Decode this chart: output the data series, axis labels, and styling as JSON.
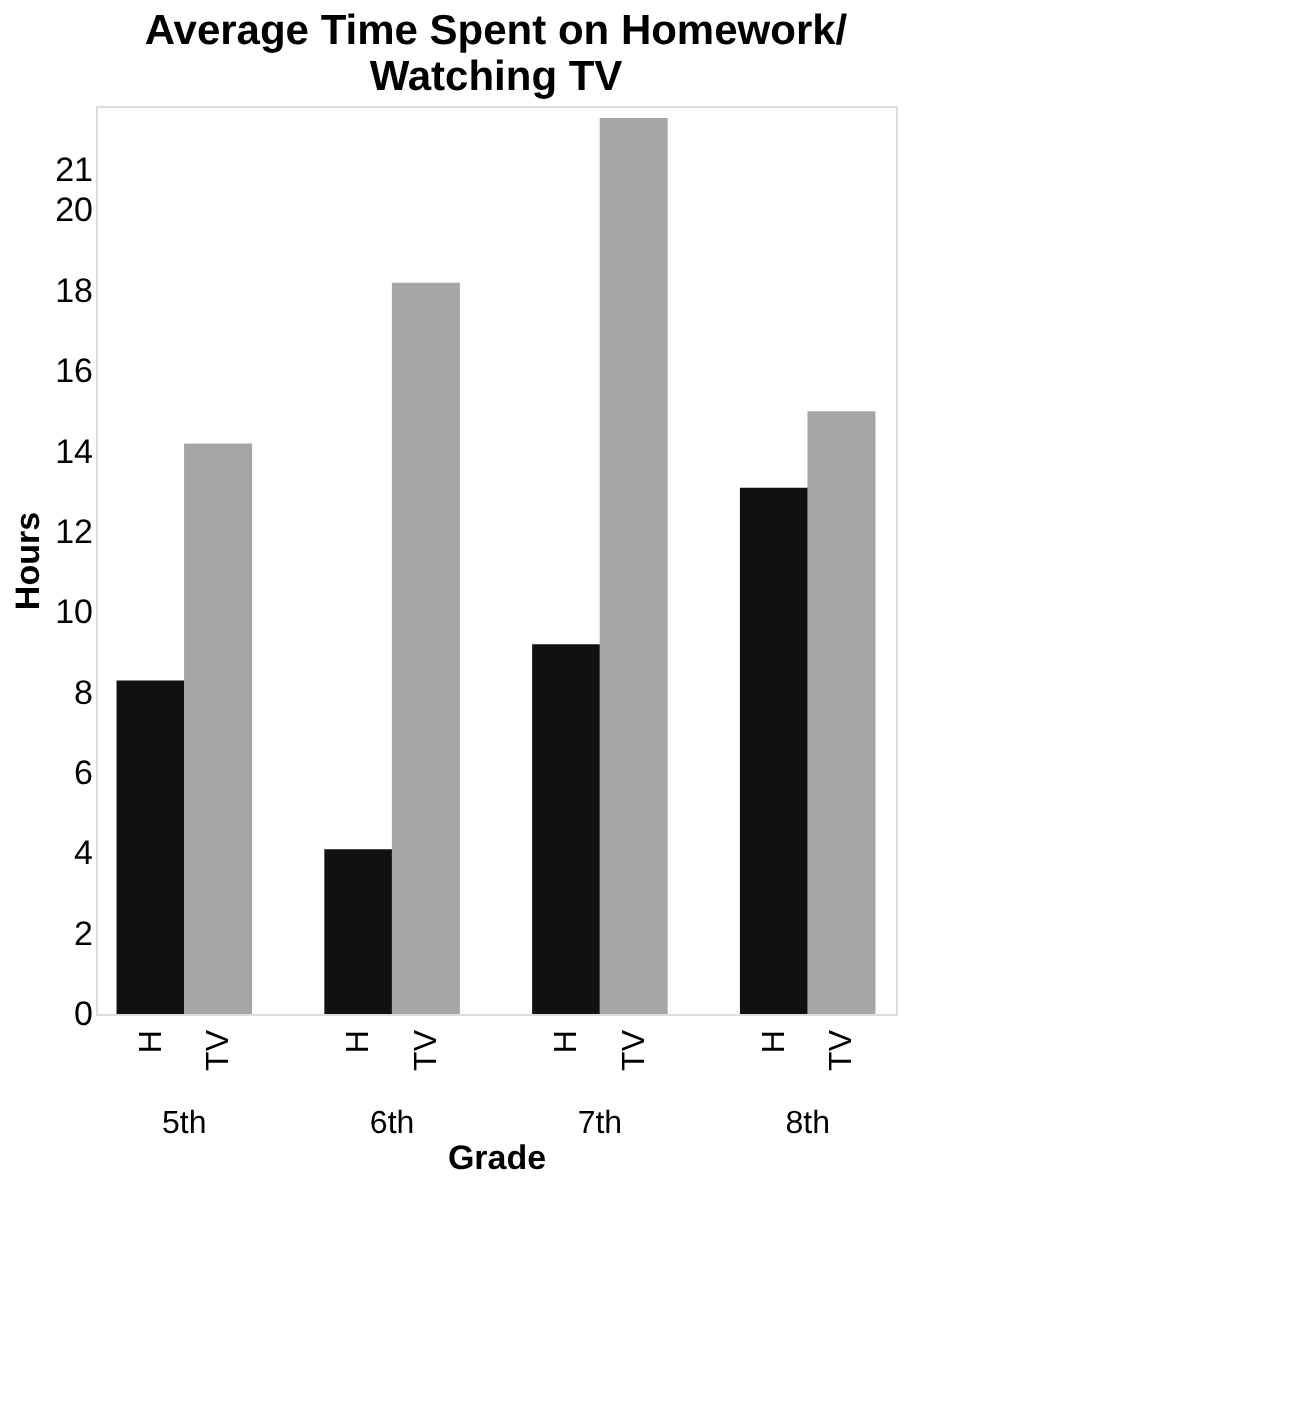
{
  "chart_data": {
    "type": "bar",
    "title": "Average Time Spent on Homework/\nWatching TV",
    "xlabel": "Grade",
    "ylabel": "Hours",
    "categories": [
      "5th",
      "6th",
      "7th",
      "8th"
    ],
    "series": [
      {
        "name": "H",
        "color": "#111111",
        "values": [
          8.3,
          4.1,
          9.2,
          13.1
        ]
      },
      {
        "name": "TV",
        "color": "#a6a6a6",
        "values": [
          14.2,
          18.2,
          22.3,
          15.0
        ]
      }
    ],
    "ylim": [
      0,
      22.6
    ],
    "yticks": [
      0,
      2,
      4,
      6,
      8,
      10,
      12,
      14,
      16,
      18,
      20,
      21
    ],
    "grid": false,
    "legend": false
  }
}
